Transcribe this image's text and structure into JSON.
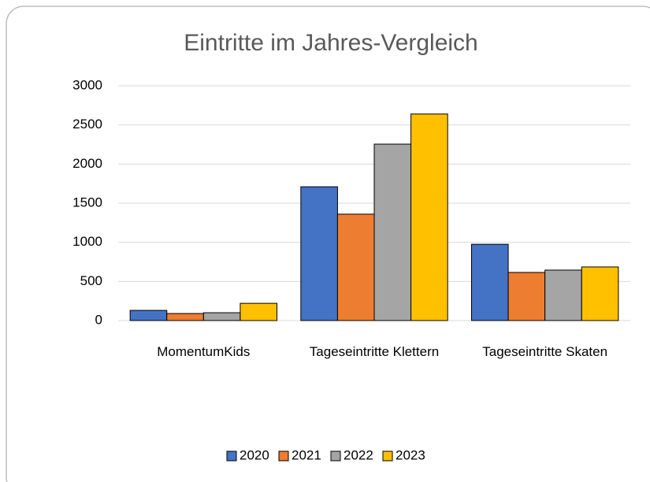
{
  "chart_data": {
    "type": "bar",
    "title": "Eintritte im Jahres-Vergleich",
    "categories": [
      "MomentumKids",
      "Tageseintritte Klettern",
      "Tageseintritte Skaten"
    ],
    "series": [
      {
        "name": "2020",
        "color": "#4472c4",
        "values": [
          130,
          1710,
          975
        ]
      },
      {
        "name": "2021",
        "color": "#ed7d31",
        "values": [
          90,
          1360,
          615
        ]
      },
      {
        "name": "2022",
        "color": "#a5a5a5",
        "values": [
          100,
          2255,
          645
        ]
      },
      {
        "name": "2023",
        "color": "#ffc000",
        "values": [
          220,
          2640,
          685
        ]
      }
    ],
    "ylim": [
      0,
      3000
    ],
    "yticks": [
      0,
      500,
      1000,
      1500,
      2000,
      2500,
      3000
    ],
    "grid": true,
    "legend": "bottom"
  }
}
